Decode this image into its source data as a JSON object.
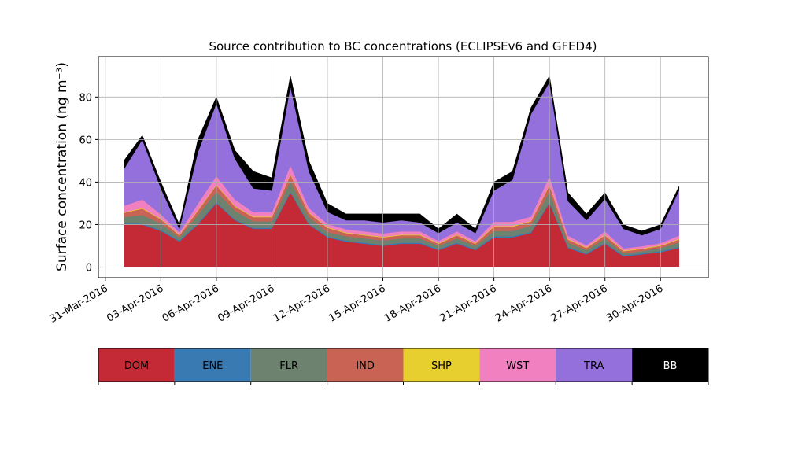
{
  "chart_data": {
    "type": "stacked_area",
    "title": "Source contribution to BC concentrations (ECLIPSEv6 and GFED4)",
    "y_label": "Surface concentration (ng m⁻³)",
    "x": [
      "2016-04-01",
      "2016-04-02",
      "2016-04-03",
      "2016-04-04",
      "2016-04-05",
      "2016-04-06",
      "2016-04-07",
      "2016-04-08",
      "2016-04-09",
      "2016-04-10",
      "2016-04-11",
      "2016-04-12",
      "2016-04-13",
      "2016-04-14",
      "2016-04-15",
      "2016-04-16",
      "2016-04-17",
      "2016-04-18",
      "2016-04-19",
      "2016-04-20",
      "2016-04-21",
      "2016-04-22",
      "2016-04-23",
      "2016-04-24",
      "2016-04-25",
      "2016-04-26",
      "2016-04-27",
      "2016-04-28",
      "2016-04-29",
      "2016-04-30",
      "2016-05-01"
    ],
    "series": [
      {
        "name": "DOM",
        "color": "#c32a36",
        "values": [
          20,
          20,
          17,
          12,
          20,
          30,
          22,
          18,
          18,
          35,
          20,
          14,
          12,
          11,
          10,
          11,
          11,
          8,
          11,
          8,
          14,
          14,
          16,
          30,
          9,
          6,
          11,
          5,
          6,
          7,
          9
        ]
      },
      {
        "name": "ENE",
        "color": "#3a7ab3",
        "values": [
          0.5,
          0.5,
          0.5,
          0.5,
          0.5,
          0.5,
          0.5,
          0.5,
          0.5,
          0.5,
          0.5,
          0.5,
          0.5,
          0.5,
          0.5,
          0.5,
          0.5,
          0.5,
          0.5,
          0.5,
          0.5,
          0.5,
          0.5,
          0.5,
          0.5,
          0.5,
          0.5,
          0.5,
          0.5,
          0.5,
          0.5
        ]
      },
      {
        "name": "FLR",
        "color": "#6e8270",
        "values": [
          3,
          4,
          3,
          1.5,
          4,
          5,
          4,
          3,
          3,
          5,
          3,
          2,
          2,
          2,
          2,
          2,
          2,
          1.5,
          2,
          1.5,
          2.5,
          2.5,
          3,
          5,
          2,
          1.5,
          2,
          1,
          1,
          1.5,
          2
        ]
      },
      {
        "name": "IND",
        "color": "#c96454",
        "values": [
          2,
          3,
          2,
          1,
          2,
          3,
          2,
          2,
          2,
          3,
          2,
          2,
          1.5,
          1.5,
          1.5,
          1.5,
          1.5,
          1,
          1.5,
          1,
          2,
          2,
          2,
          3,
          1.5,
          1,
          1.5,
          1,
          1,
          1,
          1.5
        ]
      },
      {
        "name": "SHP",
        "color": "#e6cf2e",
        "values": [
          0.3,
          0.3,
          0.3,
          0.3,
          0.3,
          0.3,
          0.3,
          0.3,
          0.3,
          0.3,
          0.3,
          0.3,
          0.3,
          0.3,
          0.3,
          0.3,
          0.3,
          0.3,
          0.3,
          0.3,
          0.3,
          0.3,
          0.3,
          0.3,
          0.3,
          0.3,
          0.3,
          0.3,
          0.3,
          0.3,
          0.3
        ]
      },
      {
        "name": "WST",
        "color": "#f080c0",
        "values": [
          3,
          4,
          2,
          1,
          3,
          4,
          3,
          2,
          2,
          4,
          2,
          1.5,
          1.5,
          1.5,
          1.5,
          1.5,
          1.5,
          1,
          1.5,
          1,
          2,
          2,
          2,
          4,
          1.5,
          1,
          1.5,
          1,
          1,
          1,
          1.5
        ]
      },
      {
        "name": "TRA",
        "color": "#9370db",
        "values": [
          17.2,
          28.2,
          12.2,
          1.7,
          24.2,
          34.2,
          19.2,
          11.2,
          10.2,
          37.2,
          17.2,
          5.7,
          4.2,
          5.2,
          5.2,
          5.2,
          4.2,
          3.7,
          4.2,
          3.7,
          14.7,
          19.7,
          48.2,
          44.2,
          16.2,
          11.7,
          15.2,
          9.2,
          5.2,
          6.7,
          21.2
        ]
      },
      {
        "name": "BB",
        "color": "#000000",
        "values": [
          4,
          2,
          3,
          2,
          6,
          3,
          4,
          8,
          6,
          5,
          5,
          4,
          3,
          3,
          4,
          3,
          4,
          2,
          4,
          2,
          4,
          4,
          3,
          3,
          4,
          3,
          3,
          2,
          2,
          2,
          2
        ]
      }
    ],
    "xlim": [
      "2016-03-30T15:00",
      "2016-05-02T14:00"
    ],
    "xticks": [
      {
        "value": "2016-03-31",
        "label": "31-Mar-2016"
      },
      {
        "value": "2016-04-03",
        "label": "03-Apr-2016"
      },
      {
        "value": "2016-04-06",
        "label": "06-Apr-2016"
      },
      {
        "value": "2016-04-09",
        "label": "09-Apr-2016"
      },
      {
        "value": "2016-04-12",
        "label": "12-Apr-2016"
      },
      {
        "value": "2016-04-15",
        "label": "15-Apr-2016"
      },
      {
        "value": "2016-04-18",
        "label": "18-Apr-2016"
      },
      {
        "value": "2016-04-21",
        "label": "21-Apr-2016"
      },
      {
        "value": "2016-04-24",
        "label": "24-Apr-2016"
      },
      {
        "value": "2016-04-27",
        "label": "27-Apr-2016"
      },
      {
        "value": "2016-04-30",
        "label": "30-Apr-2016"
      }
    ],
    "ylim": [
      -5,
      99
    ],
    "yticks": [
      0,
      20,
      40,
      60,
      80
    ],
    "grid": true,
    "legend": "bottom"
  }
}
